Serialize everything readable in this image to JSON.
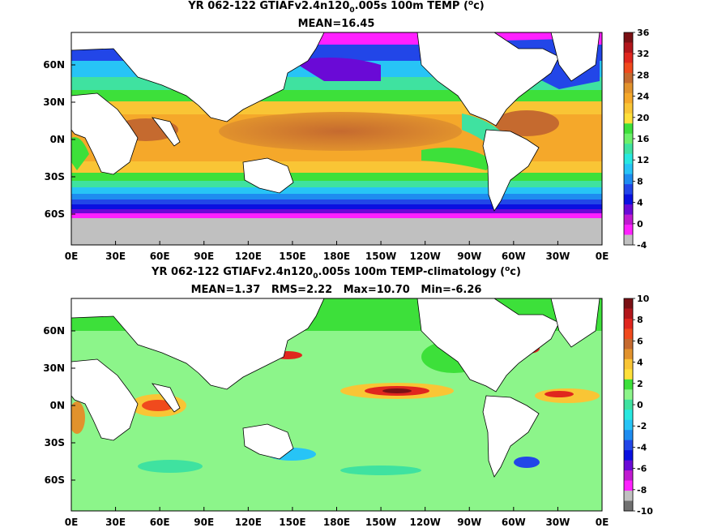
{
  "panels": [
    {
      "id": "top",
      "title_prefix": "YR 062-122 GTIAFv2.4n120",
      "title_sub": "0",
      "title_suffix": ".005s 100m TEMP (",
      "title_sup": "o",
      "title_end": "c)",
      "stats": "MEAN=16.45",
      "lat_labels": [
        "60N",
        "30N",
        "0N",
        "30S",
        "60S"
      ],
      "lon_labels": [
        "0E",
        "30E",
        "60E",
        "90E",
        "120E",
        "150E",
        "180E",
        "150W",
        "120W",
        "90W",
        "60W",
        "30W",
        "0E"
      ],
      "colorbar": {
        "labels": [
          "36",
          "32",
          "28",
          "24",
          "20",
          "16",
          "12",
          "8",
          "4",
          "0",
          "-4"
        ],
        "colors": [
          "#7a1014",
          "#b2161b",
          "#e0261e",
          "#f04a1d",
          "#c56a2f",
          "#e1922d",
          "#f5a82a",
          "#f9c535",
          "#ffe03a",
          "#3de03a",
          "#6cf06a",
          "#3fe2a0",
          "#28e8e0",
          "#27c4f6",
          "#1e8cf0",
          "#2246e8",
          "#0a10e0",
          "#6a0ad6",
          "#c01ad0",
          "#ff20ff",
          "#c0c0c0"
        ]
      }
    },
    {
      "id": "bottom",
      "title_prefix": "YR 062-122 GTIAFv2.4n120",
      "title_sub": "0",
      "title_suffix": ".005s 100m TEMP-climatology (",
      "title_sup": "o",
      "title_end": "c)",
      "stats": "MEAN=1.37   RMS=2.22   Max=10.70   Min=-6.26",
      "lat_labels": [
        "60N",
        "30N",
        "0N",
        "30S",
        "60S"
      ],
      "lon_labels": [
        "0E",
        "30E",
        "60E",
        "90E",
        "120E",
        "150E",
        "180E",
        "150W",
        "120W",
        "90W",
        "60W",
        "30W",
        "0E"
      ],
      "colorbar": {
        "labels": [
          "10",
          "8",
          "6",
          "4",
          "2",
          "0",
          "-2",
          "-4",
          "-6",
          "-8",
          "-10"
        ],
        "colors": [
          "#7a1014",
          "#b2161b",
          "#e0261e",
          "#f04a1d",
          "#c56a2f",
          "#e1922d",
          "#f9c535",
          "#ffe03a",
          "#3de03a",
          "#8cf58a",
          "#3fe2a0",
          "#28e8e0",
          "#27c4f6",
          "#1e8cf0",
          "#2246e8",
          "#0a10e0",
          "#6a0ad6",
          "#c01ad0",
          "#ff20ff",
          "#c0c0c0",
          "#707070"
        ]
      }
    }
  ]
}
